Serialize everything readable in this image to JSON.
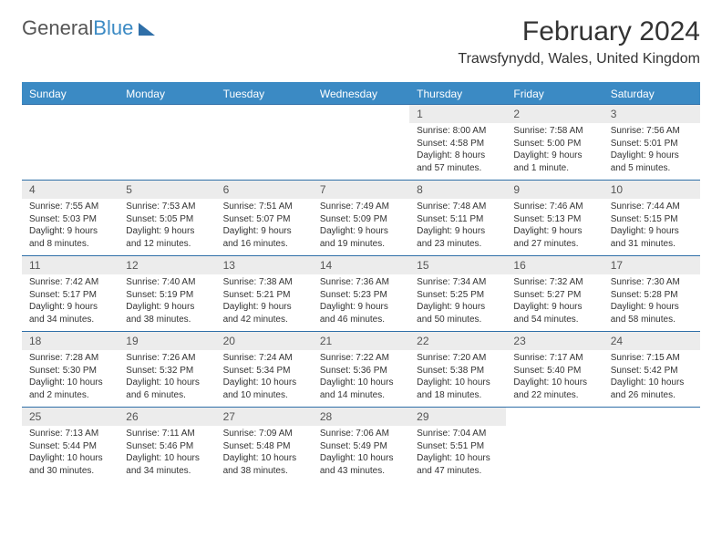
{
  "logo": {
    "text_a": "General",
    "text_b": "Blue"
  },
  "title": "February 2024",
  "location": "Trawsfynydd, Wales, United Kingdom",
  "colors": {
    "header_bar": "#3b8ac4",
    "daynum_bg": "#ececec",
    "border": "#2f6fa8",
    "text": "#333333"
  },
  "weekdays": [
    "Sunday",
    "Monday",
    "Tuesday",
    "Wednesday",
    "Thursday",
    "Friday",
    "Saturday"
  ],
  "weeks": [
    [
      null,
      null,
      null,
      null,
      {
        "n": "1",
        "sr": "Sunrise: 8:00 AM",
        "ss": "Sunset: 4:58 PM",
        "d1": "Daylight: 8 hours",
        "d2": "and 57 minutes."
      },
      {
        "n": "2",
        "sr": "Sunrise: 7:58 AM",
        "ss": "Sunset: 5:00 PM",
        "d1": "Daylight: 9 hours",
        "d2": "and 1 minute."
      },
      {
        "n": "3",
        "sr": "Sunrise: 7:56 AM",
        "ss": "Sunset: 5:01 PM",
        "d1": "Daylight: 9 hours",
        "d2": "and 5 minutes."
      }
    ],
    [
      {
        "n": "4",
        "sr": "Sunrise: 7:55 AM",
        "ss": "Sunset: 5:03 PM",
        "d1": "Daylight: 9 hours",
        "d2": "and 8 minutes."
      },
      {
        "n": "5",
        "sr": "Sunrise: 7:53 AM",
        "ss": "Sunset: 5:05 PM",
        "d1": "Daylight: 9 hours",
        "d2": "and 12 minutes."
      },
      {
        "n": "6",
        "sr": "Sunrise: 7:51 AM",
        "ss": "Sunset: 5:07 PM",
        "d1": "Daylight: 9 hours",
        "d2": "and 16 minutes."
      },
      {
        "n": "7",
        "sr": "Sunrise: 7:49 AM",
        "ss": "Sunset: 5:09 PM",
        "d1": "Daylight: 9 hours",
        "d2": "and 19 minutes."
      },
      {
        "n": "8",
        "sr": "Sunrise: 7:48 AM",
        "ss": "Sunset: 5:11 PM",
        "d1": "Daylight: 9 hours",
        "d2": "and 23 minutes."
      },
      {
        "n": "9",
        "sr": "Sunrise: 7:46 AM",
        "ss": "Sunset: 5:13 PM",
        "d1": "Daylight: 9 hours",
        "d2": "and 27 minutes."
      },
      {
        "n": "10",
        "sr": "Sunrise: 7:44 AM",
        "ss": "Sunset: 5:15 PM",
        "d1": "Daylight: 9 hours",
        "d2": "and 31 minutes."
      }
    ],
    [
      {
        "n": "11",
        "sr": "Sunrise: 7:42 AM",
        "ss": "Sunset: 5:17 PM",
        "d1": "Daylight: 9 hours",
        "d2": "and 34 minutes."
      },
      {
        "n": "12",
        "sr": "Sunrise: 7:40 AM",
        "ss": "Sunset: 5:19 PM",
        "d1": "Daylight: 9 hours",
        "d2": "and 38 minutes."
      },
      {
        "n": "13",
        "sr": "Sunrise: 7:38 AM",
        "ss": "Sunset: 5:21 PM",
        "d1": "Daylight: 9 hours",
        "d2": "and 42 minutes."
      },
      {
        "n": "14",
        "sr": "Sunrise: 7:36 AM",
        "ss": "Sunset: 5:23 PM",
        "d1": "Daylight: 9 hours",
        "d2": "and 46 minutes."
      },
      {
        "n": "15",
        "sr": "Sunrise: 7:34 AM",
        "ss": "Sunset: 5:25 PM",
        "d1": "Daylight: 9 hours",
        "d2": "and 50 minutes."
      },
      {
        "n": "16",
        "sr": "Sunrise: 7:32 AM",
        "ss": "Sunset: 5:27 PM",
        "d1": "Daylight: 9 hours",
        "d2": "and 54 minutes."
      },
      {
        "n": "17",
        "sr": "Sunrise: 7:30 AM",
        "ss": "Sunset: 5:28 PM",
        "d1": "Daylight: 9 hours",
        "d2": "and 58 minutes."
      }
    ],
    [
      {
        "n": "18",
        "sr": "Sunrise: 7:28 AM",
        "ss": "Sunset: 5:30 PM",
        "d1": "Daylight: 10 hours",
        "d2": "and 2 minutes."
      },
      {
        "n": "19",
        "sr": "Sunrise: 7:26 AM",
        "ss": "Sunset: 5:32 PM",
        "d1": "Daylight: 10 hours",
        "d2": "and 6 minutes."
      },
      {
        "n": "20",
        "sr": "Sunrise: 7:24 AM",
        "ss": "Sunset: 5:34 PM",
        "d1": "Daylight: 10 hours",
        "d2": "and 10 minutes."
      },
      {
        "n": "21",
        "sr": "Sunrise: 7:22 AM",
        "ss": "Sunset: 5:36 PM",
        "d1": "Daylight: 10 hours",
        "d2": "and 14 minutes."
      },
      {
        "n": "22",
        "sr": "Sunrise: 7:20 AM",
        "ss": "Sunset: 5:38 PM",
        "d1": "Daylight: 10 hours",
        "d2": "and 18 minutes."
      },
      {
        "n": "23",
        "sr": "Sunrise: 7:17 AM",
        "ss": "Sunset: 5:40 PM",
        "d1": "Daylight: 10 hours",
        "d2": "and 22 minutes."
      },
      {
        "n": "24",
        "sr": "Sunrise: 7:15 AM",
        "ss": "Sunset: 5:42 PM",
        "d1": "Daylight: 10 hours",
        "d2": "and 26 minutes."
      }
    ],
    [
      {
        "n": "25",
        "sr": "Sunrise: 7:13 AM",
        "ss": "Sunset: 5:44 PM",
        "d1": "Daylight: 10 hours",
        "d2": "and 30 minutes."
      },
      {
        "n": "26",
        "sr": "Sunrise: 7:11 AM",
        "ss": "Sunset: 5:46 PM",
        "d1": "Daylight: 10 hours",
        "d2": "and 34 minutes."
      },
      {
        "n": "27",
        "sr": "Sunrise: 7:09 AM",
        "ss": "Sunset: 5:48 PM",
        "d1": "Daylight: 10 hours",
        "d2": "and 38 minutes."
      },
      {
        "n": "28",
        "sr": "Sunrise: 7:06 AM",
        "ss": "Sunset: 5:49 PM",
        "d1": "Daylight: 10 hours",
        "d2": "and 43 minutes."
      },
      {
        "n": "29",
        "sr": "Sunrise: 7:04 AM",
        "ss": "Sunset: 5:51 PM",
        "d1": "Daylight: 10 hours",
        "d2": "and 47 minutes."
      },
      null,
      null
    ]
  ]
}
